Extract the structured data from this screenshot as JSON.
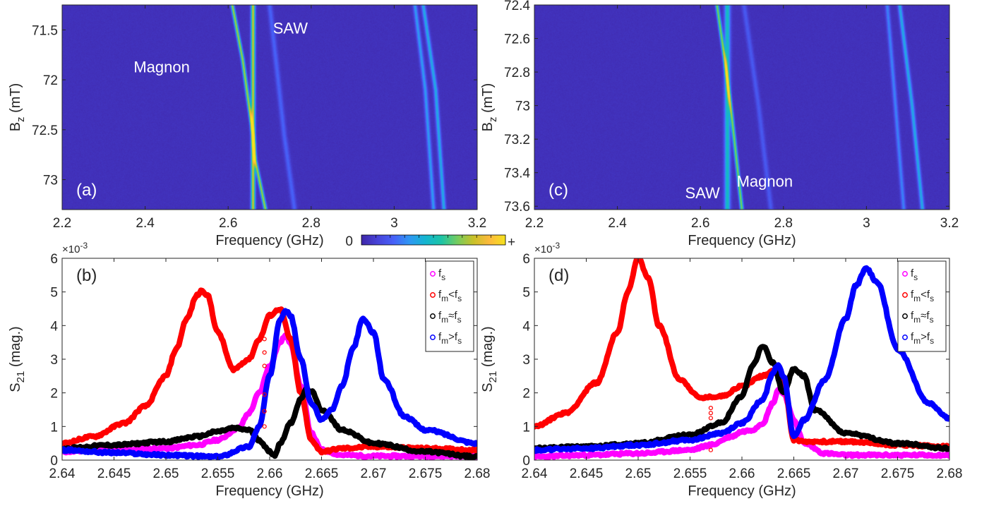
{
  "chart_data": [
    {
      "id": "a",
      "type": "heatmap",
      "panel_label": "(a)",
      "xlabel": "Frequency (GHz)",
      "ylabel_main": "B",
      "ylabel_sub": "z",
      "ylabel_unit": " (mT)",
      "xlim": [
        2.2,
        3.2
      ],
      "ylim": [
        71.25,
        73.3
      ],
      "xticks": [
        2.2,
        2.4,
        2.6,
        2.8,
        3.0,
        3.2
      ],
      "xtick_labels": [
        "2.2",
        "2.4",
        "2.6",
        "2.8",
        "3",
        "3.2"
      ],
      "yticks": [
        71.5,
        72.0,
        72.5,
        73.0
      ],
      "ytick_labels": [
        "71.5",
        "72",
        "72.5",
        "73"
      ],
      "y_reversed": true,
      "annotations": [
        {
          "text": "Magnon",
          "x": 2.44,
          "y": 71.87
        },
        {
          "text": "SAW",
          "x": 2.75,
          "y": 71.48
        }
      ],
      "ridges": [
        {
          "name": "SAW",
          "points": [
            [
              2.66,
              71.25
            ],
            [
              2.66,
              73.3
            ]
          ],
          "strength": 0.75,
          "width": 0.005
        },
        {
          "name": "Magnon",
          "points": [
            [
              2.61,
              71.25
            ],
            [
              2.635,
              71.8
            ],
            [
              2.66,
              72.55
            ],
            [
              2.665,
              72.8
            ],
            [
              2.69,
              73.3
            ]
          ],
          "strength": 0.7,
          "width": 0.004
        },
        {
          "name": "",
          "points": [
            [
              2.7,
              71.25
            ],
            [
              2.715,
              71.8
            ],
            [
              2.735,
              72.55
            ],
            [
              2.76,
              73.3
            ]
          ],
          "strength": 0.18,
          "width": 0.006
        },
        {
          "name": "",
          "points": [
            [
              3.05,
              71.25
            ],
            [
              3.075,
              72.1
            ],
            [
              3.095,
              73.3
            ]
          ],
          "strength": 0.3,
          "width": 0.005
        },
        {
          "name": "",
          "points": [
            [
              3.07,
              71.25
            ],
            [
              3.1,
              72.1
            ],
            [
              3.12,
              73.3
            ]
          ],
          "strength": 0.35,
          "width": 0.005
        }
      ]
    },
    {
      "id": "c",
      "type": "heatmap",
      "panel_label": "(c)",
      "xlabel": "Frequency (GHz)",
      "ylabel_main": "B",
      "ylabel_sub": "z",
      "ylabel_unit": " (mT)",
      "xlim": [
        2.2,
        3.2
      ],
      "ylim": [
        72.4,
        73.62
      ],
      "xticks": [
        2.2,
        2.4,
        2.6,
        2.8,
        3.0,
        3.2
      ],
      "xtick_labels": [
        "2.2",
        "2.4",
        "2.6",
        "2.8",
        "3",
        "3.2"
      ],
      "yticks": [
        72.4,
        72.6,
        72.8,
        73.0,
        73.2,
        73.4,
        73.6
      ],
      "ytick_labels": [
        "72.4",
        "72.6",
        "72.8",
        "73",
        "73.2",
        "73.4",
        "73.6"
      ],
      "y_reversed": true,
      "annotations": [
        {
          "text": "Magnon",
          "x": 2.755,
          "y": 73.45
        },
        {
          "text": "SAW",
          "x": 2.605,
          "y": 73.52
        }
      ],
      "ridges": [
        {
          "name": "SAW",
          "points": [
            [
              2.665,
              72.4
            ],
            [
              2.665,
              73.62
            ]
          ],
          "strength": 0.45,
          "width": 0.007
        },
        {
          "name": "Magnon",
          "points": [
            [
              2.64,
              72.4
            ],
            [
              2.66,
              72.75
            ],
            [
              2.675,
              73.05
            ],
            [
              2.7,
              73.62
            ]
          ],
          "strength": 0.65,
          "width": 0.004
        },
        {
          "name": "",
          "points": [
            [
              2.705,
              72.4
            ],
            [
              2.74,
              73.0
            ],
            [
              2.77,
              73.62
            ]
          ],
          "strength": 0.15,
          "width": 0.006
        },
        {
          "name": "",
          "points": [
            [
              3.05,
              72.4
            ],
            [
              3.07,
              73.0
            ],
            [
              3.09,
              73.62
            ]
          ],
          "strength": 0.25,
          "width": 0.005
        },
        {
          "name": "",
          "points": [
            [
              3.08,
              72.4
            ],
            [
              3.11,
              73.0
            ],
            [
              3.135,
              73.62
            ]
          ],
          "strength": 0.35,
          "width": 0.005
        }
      ]
    },
    {
      "id": "b",
      "type": "scatter",
      "panel_label": "(b)",
      "xlabel": "Frequency (GHz)",
      "ylabel_main": "S",
      "ylabel_sub": "21",
      "ylabel_unit": " (mag.)",
      "multiplier": "×10",
      "multiplier_exp": "-3",
      "xlim": [
        2.64,
        2.68
      ],
      "ylim": [
        0,
        6
      ],
      "xticks": [
        2.64,
        2.645,
        2.65,
        2.655,
        2.66,
        2.665,
        2.67,
        2.675,
        2.68
      ],
      "xtick_labels": [
        "2.64",
        "2.645",
        "2.65",
        "2.655",
        "2.66",
        "2.665",
        "2.67",
        "2.675",
        "2.68"
      ],
      "yticks": [
        0,
        1,
        2,
        3,
        4,
        5,
        6
      ],
      "ytick_labels": [
        "0",
        "1",
        "2",
        "3",
        "4",
        "5",
        "6"
      ],
      "series": [
        {
          "name": "f_s",
          "color": "#ff00ff",
          "x": [
            2.64,
            2.645,
            2.65,
            2.653,
            2.655,
            2.657,
            2.658,
            2.659,
            2.66,
            2.661,
            2.6615,
            2.662,
            2.663,
            2.664,
            2.665,
            2.667,
            2.67,
            2.675,
            2.68
          ],
          "y": [
            0.25,
            0.3,
            0.35,
            0.45,
            0.6,
            0.95,
            1.4,
            2.0,
            2.8,
            3.5,
            3.7,
            3.5,
            2.2,
            0.8,
            0.3,
            0.15,
            0.12,
            0.12,
            0.12
          ]
        },
        {
          "name": "f_m<f_s",
          "color": "#ff0000",
          "x": [
            2.64,
            2.643,
            2.646,
            2.648,
            2.65,
            2.651,
            2.652,
            2.653,
            2.6535,
            2.654,
            2.655,
            2.6565,
            2.658,
            2.659,
            2.66,
            2.661,
            2.662,
            2.663,
            2.664,
            2.665,
            2.667,
            2.67,
            2.675,
            2.68
          ],
          "y": [
            0.5,
            0.7,
            1.1,
            1.6,
            2.5,
            3.3,
            4.2,
            4.9,
            5.05,
            4.9,
            3.8,
            2.7,
            3.0,
            3.6,
            4.3,
            4.5,
            3.6,
            2.0,
            0.6,
            0.25,
            0.35,
            0.4,
            0.35,
            0.3
          ]
        },
        {
          "name": "f_m≈f_s",
          "color": "#000000",
          "x": [
            2.64,
            2.645,
            2.65,
            2.653,
            2.655,
            2.6565,
            2.658,
            2.659,
            2.66,
            2.6605,
            2.661,
            2.662,
            2.663,
            2.6635,
            2.664,
            2.665,
            2.667,
            2.67,
            2.675,
            2.68
          ],
          "y": [
            0.35,
            0.45,
            0.55,
            0.7,
            0.85,
            0.95,
            0.9,
            0.6,
            0.25,
            0.15,
            0.5,
            1.1,
            1.8,
            2.1,
            2.05,
            1.5,
            0.9,
            0.5,
            0.25,
            0.1
          ]
        },
        {
          "name": "f_m>f_s",
          "color": "#0000ff",
          "x": [
            2.64,
            2.645,
            2.65,
            2.655,
            2.658,
            2.659,
            2.66,
            2.661,
            2.6615,
            2.662,
            2.663,
            2.664,
            2.665,
            2.666,
            2.667,
            2.668,
            2.669,
            2.67,
            2.671,
            2.673,
            2.675,
            2.68
          ],
          "y": [
            0.3,
            0.22,
            0.15,
            0.1,
            0.4,
            1.0,
            2.5,
            4.2,
            4.45,
            4.3,
            3.0,
            1.7,
            1.2,
            1.5,
            2.2,
            3.3,
            4.2,
            3.8,
            2.4,
            1.3,
            0.9,
            0.5
          ]
        }
      ],
      "markers": {
        "color": "#ff0000",
        "x": [
          2.6595,
          2.6595,
          2.6595,
          2.6595,
          2.6595,
          2.6595
        ],
        "y": [
          3.2,
          2.8,
          1.95,
          1.45,
          1.0,
          3.6
        ]
      },
      "legend": {
        "position": "top-right",
        "entries": [
          {
            "main": "f",
            "sub": "s",
            "rest": "",
            "sub2": "",
            "color": "#ff00ff"
          },
          {
            "main": "f",
            "sub": "m",
            "rest": "<f",
            "sub2": "s",
            "color": "#ff0000"
          },
          {
            "main": "f",
            "sub": "m",
            "rest": "≈f",
            "sub2": "s",
            "color": "#000000"
          },
          {
            "main": "f",
            "sub": "m",
            "rest": ">f",
            "sub2": "s",
            "color": "#0000ff"
          }
        ]
      }
    },
    {
      "id": "d",
      "type": "scatter",
      "panel_label": "(d)",
      "xlabel": "Frequency (GHz)",
      "ylabel_main": "S",
      "ylabel_sub": "21",
      "ylabel_unit": " (mag.)",
      "multiplier": "×10",
      "multiplier_exp": "-3",
      "xlim": [
        2.64,
        2.68
      ],
      "ylim": [
        0,
        6
      ],
      "xticks": [
        2.64,
        2.645,
        2.65,
        2.655,
        2.66,
        2.665,
        2.67,
        2.675,
        2.68
      ],
      "xtick_labels": [
        "2.64",
        "2.645",
        "2.65",
        "2.655",
        "2.66",
        "2.665",
        "2.67",
        "2.675",
        "2.68"
      ],
      "yticks": [
        0,
        1,
        2,
        3,
        4,
        5,
        6
      ],
      "ytick_labels": [
        "0",
        "1",
        "2",
        "3",
        "4",
        "5",
        "6"
      ],
      "series": [
        {
          "name": "f_s",
          "color": "#ff00ff",
          "x": [
            2.64,
            2.645,
            2.65,
            2.655,
            2.657,
            2.659,
            2.66,
            2.661,
            2.662,
            2.663,
            2.6635,
            2.664,
            2.665,
            2.666,
            2.668,
            2.67,
            2.675,
            2.68
          ],
          "y": [
            0.1,
            0.15,
            0.2,
            0.3,
            0.45,
            0.7,
            0.85,
            0.9,
            1.1,
            1.7,
            2.1,
            2.0,
            1.2,
            0.5,
            0.2,
            0.15,
            0.15,
            0.15
          ]
        },
        {
          "name": "f_m<f_s",
          "color": "#ff0000",
          "x": [
            2.64,
            2.643,
            2.646,
            2.648,
            2.649,
            2.65,
            2.651,
            2.652,
            2.654,
            2.656,
            2.658,
            2.66,
            2.662,
            2.663,
            2.664,
            2.665,
            2.666,
            2.67,
            2.675,
            2.68
          ],
          "y": [
            1.0,
            1.4,
            2.3,
            3.8,
            5.0,
            6.0,
            5.4,
            4.0,
            2.4,
            1.85,
            1.9,
            2.2,
            2.5,
            2.65,
            2.4,
            0.6,
            0.55,
            0.55,
            0.45,
            0.4
          ]
        },
        {
          "name": "f_m≈f_s",
          "color": "#000000",
          "x": [
            2.64,
            2.645,
            2.65,
            2.655,
            2.658,
            2.66,
            2.661,
            2.662,
            2.663,
            2.664,
            2.665,
            2.666,
            2.667,
            2.67,
            2.675,
            2.68
          ],
          "y": [
            0.35,
            0.4,
            0.5,
            0.75,
            1.1,
            1.9,
            2.8,
            3.4,
            2.9,
            2.0,
            2.7,
            2.5,
            1.5,
            0.8,
            0.5,
            0.35
          ]
        },
        {
          "name": "f_m>f_s",
          "color": "#0000ff",
          "x": [
            2.64,
            2.645,
            2.65,
            2.655,
            2.658,
            2.66,
            2.662,
            2.663,
            2.6635,
            2.664,
            2.665,
            2.666,
            2.668,
            2.67,
            2.671,
            2.672,
            2.673,
            2.675,
            2.678,
            2.68
          ],
          "y": [
            0.3,
            0.35,
            0.45,
            0.6,
            0.8,
            1.1,
            1.8,
            2.6,
            2.85,
            2.5,
            0.7,
            1.2,
            2.4,
            4.2,
            5.2,
            5.7,
            5.3,
            3.3,
            1.7,
            1.25
          ]
        }
      ],
      "markers": {
        "color": "#ff0000",
        "x": [
          2.657,
          2.657,
          2.657,
          2.657
        ],
        "y": [
          1.55,
          1.4,
          1.25,
          0.3
        ]
      },
      "legend": {
        "position": "top-right",
        "entries": [
          {
            "main": "f",
            "sub": "s",
            "rest": "",
            "sub2": "",
            "color": "#ff00ff"
          },
          {
            "main": "f",
            "sub": "m",
            "rest": "<f",
            "sub2": "s",
            "color": "#ff0000"
          },
          {
            "main": "f",
            "sub": "m",
            "rest": "≈f",
            "sub2": "s",
            "color": "#000000"
          },
          {
            "main": "f",
            "sub": "m",
            "rest": ">f",
            "sub2": "s",
            "color": "#0000ff"
          }
        ]
      }
    }
  ],
  "colorbar": {
    "min_label": "0",
    "max_label": "+",
    "colors": [
      "#3e26a8",
      "#4743d8",
      "#4760f8",
      "#2f97f3",
      "#14b5d0",
      "#1dc4a6",
      "#75cc5f",
      "#c9c129",
      "#fdb93c",
      "#f5e21e"
    ]
  }
}
